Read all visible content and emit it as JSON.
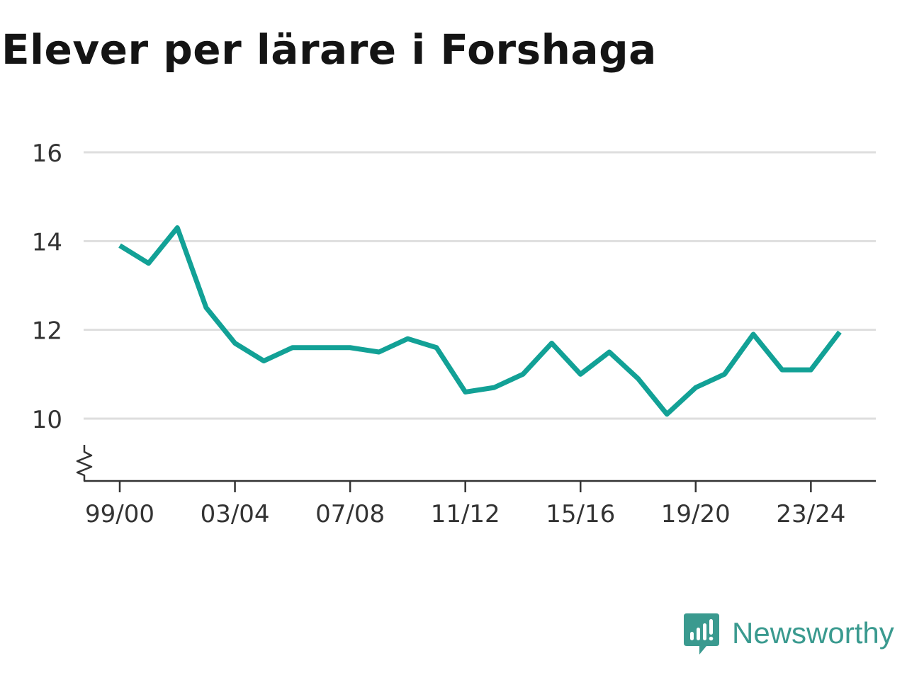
{
  "title": "Elever per lärare i Forshaga",
  "brand": {
    "name": "Newsworthy",
    "icon": "newsworthy-logo-icon",
    "color": "#3a9a8f"
  },
  "chart_data": {
    "type": "line",
    "title": "Elever per lärare i Forshaga",
    "xlabel": "",
    "ylabel": "",
    "ylim": [
      8.6,
      16
    ],
    "y_axis_break": true,
    "yticks": [
      10,
      12,
      14,
      16
    ],
    "grid": true,
    "legend": "none",
    "line_color": "#12a196",
    "x": [
      "99/00",
      "00/01",
      "01/02",
      "02/03",
      "03/04",
      "04/05",
      "05/06",
      "06/07",
      "07/08",
      "08/09",
      "09/10",
      "10/11",
      "11/12",
      "12/13",
      "13/14",
      "14/15",
      "15/16",
      "16/17",
      "17/18",
      "18/19",
      "19/20",
      "20/21",
      "21/22",
      "22/23",
      "23/24",
      "24/25"
    ],
    "xtick_labels": [
      "99/00",
      "03/04",
      "07/08",
      "11/12",
      "15/16",
      "19/20",
      "23/24"
    ],
    "series": [
      {
        "values": [
          13.9,
          13.5,
          14.3,
          12.5,
          11.7,
          11.3,
          11.6,
          11.6,
          11.6,
          11.5,
          11.8,
          11.6,
          10.6,
          10.7,
          11.0,
          11.7,
          11.0,
          11.5,
          10.9,
          10.1,
          10.7,
          11.0,
          11.9,
          11.1,
          11.1,
          11.95
        ]
      }
    ]
  }
}
